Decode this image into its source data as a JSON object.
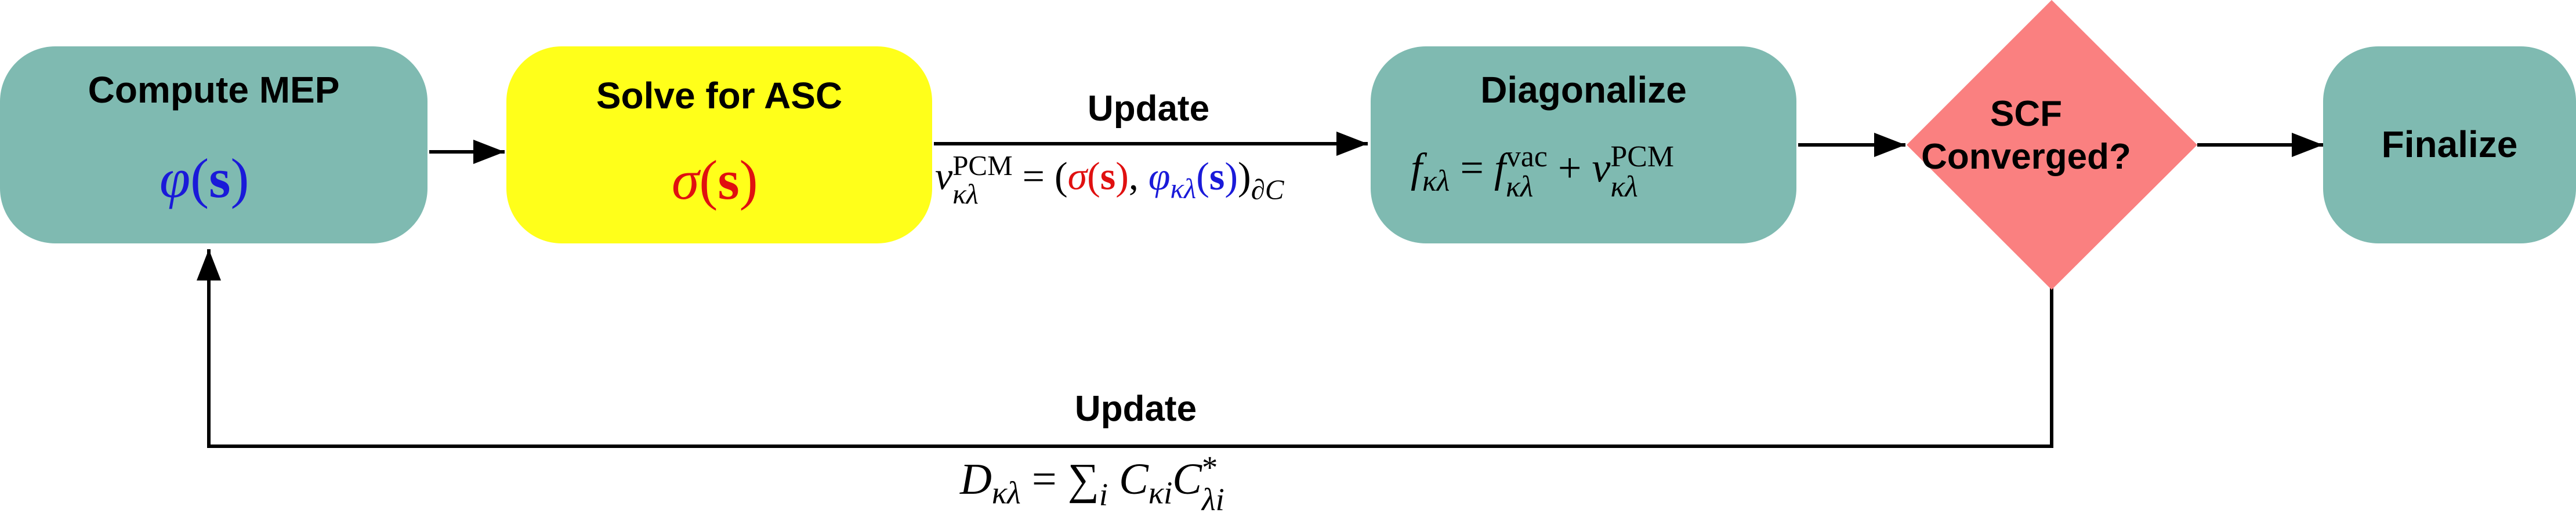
{
  "nodes": {
    "compute_mep": {
      "title": "Compute MEP"
    },
    "solve_asc": {
      "title": "Solve for ASC"
    },
    "diagonalize": {
      "title": "Diagonalize"
    },
    "scf_converged": {
      "line1": "SCF",
      "line2": "Converged?"
    },
    "finalize": {
      "title": "Finalize"
    }
  },
  "edges": {
    "update_top": {
      "label": "Update"
    },
    "update_bottom": {
      "label": "Update"
    }
  },
  "colors": {
    "teal_box": "#7fbab1",
    "yellow_box": "#ffff1a",
    "diamond": "#fa8080",
    "math_blue": "#1a1ad9",
    "math_red": "#e01010"
  }
}
